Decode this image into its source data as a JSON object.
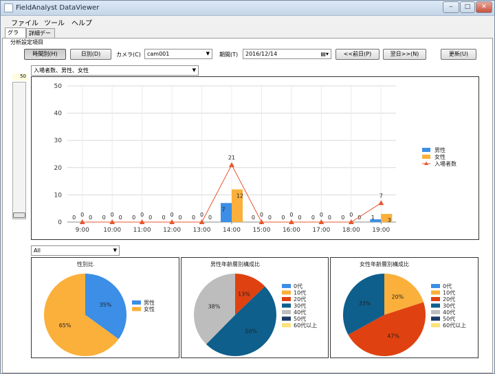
{
  "window": {
    "title": "FieldAnalyst DataViewer",
    "minimize": "‒",
    "maximize": "□",
    "close": "✕"
  },
  "menu": [
    "ファイル",
    "ツール",
    "ヘルプ"
  ],
  "tabs": [
    {
      "label": "グラフ",
      "active": true
    },
    {
      "label": "詳細データ",
      "active": false
    }
  ],
  "settings": {
    "group_label": "分析設定項目",
    "hourly_button": "時間別(H)",
    "daily_button": "日別(D)",
    "camera_label": "カメラ(C)",
    "camera_value": "cam001",
    "period_label": "期間(T)",
    "date_value": "2016/12/14",
    "prev_button": "<<前日(P)",
    "next_button": "翌日>>(N)",
    "update_button": "更新(U)"
  },
  "slider": {
    "value": "50",
    "level": 0.05
  },
  "series_select": {
    "value": "入場者数、男性、女性"
  },
  "filter_select": {
    "value": "All"
  },
  "chart_data": [
    {
      "type": "bar",
      "categories": [
        "9:00",
        "10:00",
        "11:00",
        "12:00",
        "13:00",
        "14:00",
        "15:00",
        "16:00",
        "17:00",
        "18:00",
        "19:00"
      ],
      "series": [
        {
          "name": "男性",
          "kind": "bar",
          "color": "#3c8ee6",
          "values": [
            0,
            0,
            0,
            0,
            0,
            7,
            0,
            0,
            0,
            0,
            1
          ]
        },
        {
          "name": "女性",
          "kind": "bar",
          "color": "#fbb03b",
          "values": [
            0,
            0,
            0,
            0,
            0,
            12,
            0,
            0,
            0,
            0,
            3
          ]
        },
        {
          "name": "入場者数",
          "kind": "line",
          "color": "#e8552d",
          "values": [
            0,
            0,
            0,
            0,
            0,
            21,
            0,
            0,
            0,
            0,
            7
          ]
        }
      ],
      "yticks": [
        0,
        10,
        20,
        30,
        40,
        50
      ],
      "ylim": [
        0,
        50
      ],
      "grid": true,
      "legend": "right"
    },
    {
      "type": "pie",
      "title": "性別比",
      "slices": [
        {
          "label": "男性",
          "value": 35,
          "color": "#3c8ee6"
        },
        {
          "label": "女性",
          "value": 65,
          "color": "#fbb03b"
        }
      ]
    },
    {
      "type": "pie",
      "title": "男性年齢層別構成比",
      "slices": [
        {
          "label": "0代",
          "value": 0,
          "color": "#3c8ee6"
        },
        {
          "label": "10代",
          "value": 0,
          "color": "#fbb03b"
        },
        {
          "label": "20代",
          "value": 13,
          "color": "#df4210"
        },
        {
          "label": "30代",
          "value": 50,
          "color": "#0e5f8c"
        },
        {
          "label": "40代",
          "value": 38,
          "color": "#bdbdbd"
        },
        {
          "label": "50代",
          "value": 0,
          "color": "#1b3a66"
        },
        {
          "label": "60代以上",
          "value": 0,
          "color": "#fde27a"
        }
      ]
    },
    {
      "type": "pie",
      "title": "女性年齢層別構成比",
      "slices": [
        {
          "label": "0代",
          "value": 0,
          "color": "#3c8ee6"
        },
        {
          "label": "10代",
          "value": 20,
          "color": "#fbb03b"
        },
        {
          "label": "20代",
          "value": 47,
          "color": "#df4210"
        },
        {
          "label": "30代",
          "value": 33,
          "color": "#0e5f8c"
        },
        {
          "label": "40代",
          "value": 0,
          "color": "#bdbdbd"
        },
        {
          "label": "50代",
          "value": 0,
          "color": "#1b3a66"
        },
        {
          "label": "60代以上",
          "value": 0,
          "color": "#fde27a"
        }
      ]
    }
  ]
}
